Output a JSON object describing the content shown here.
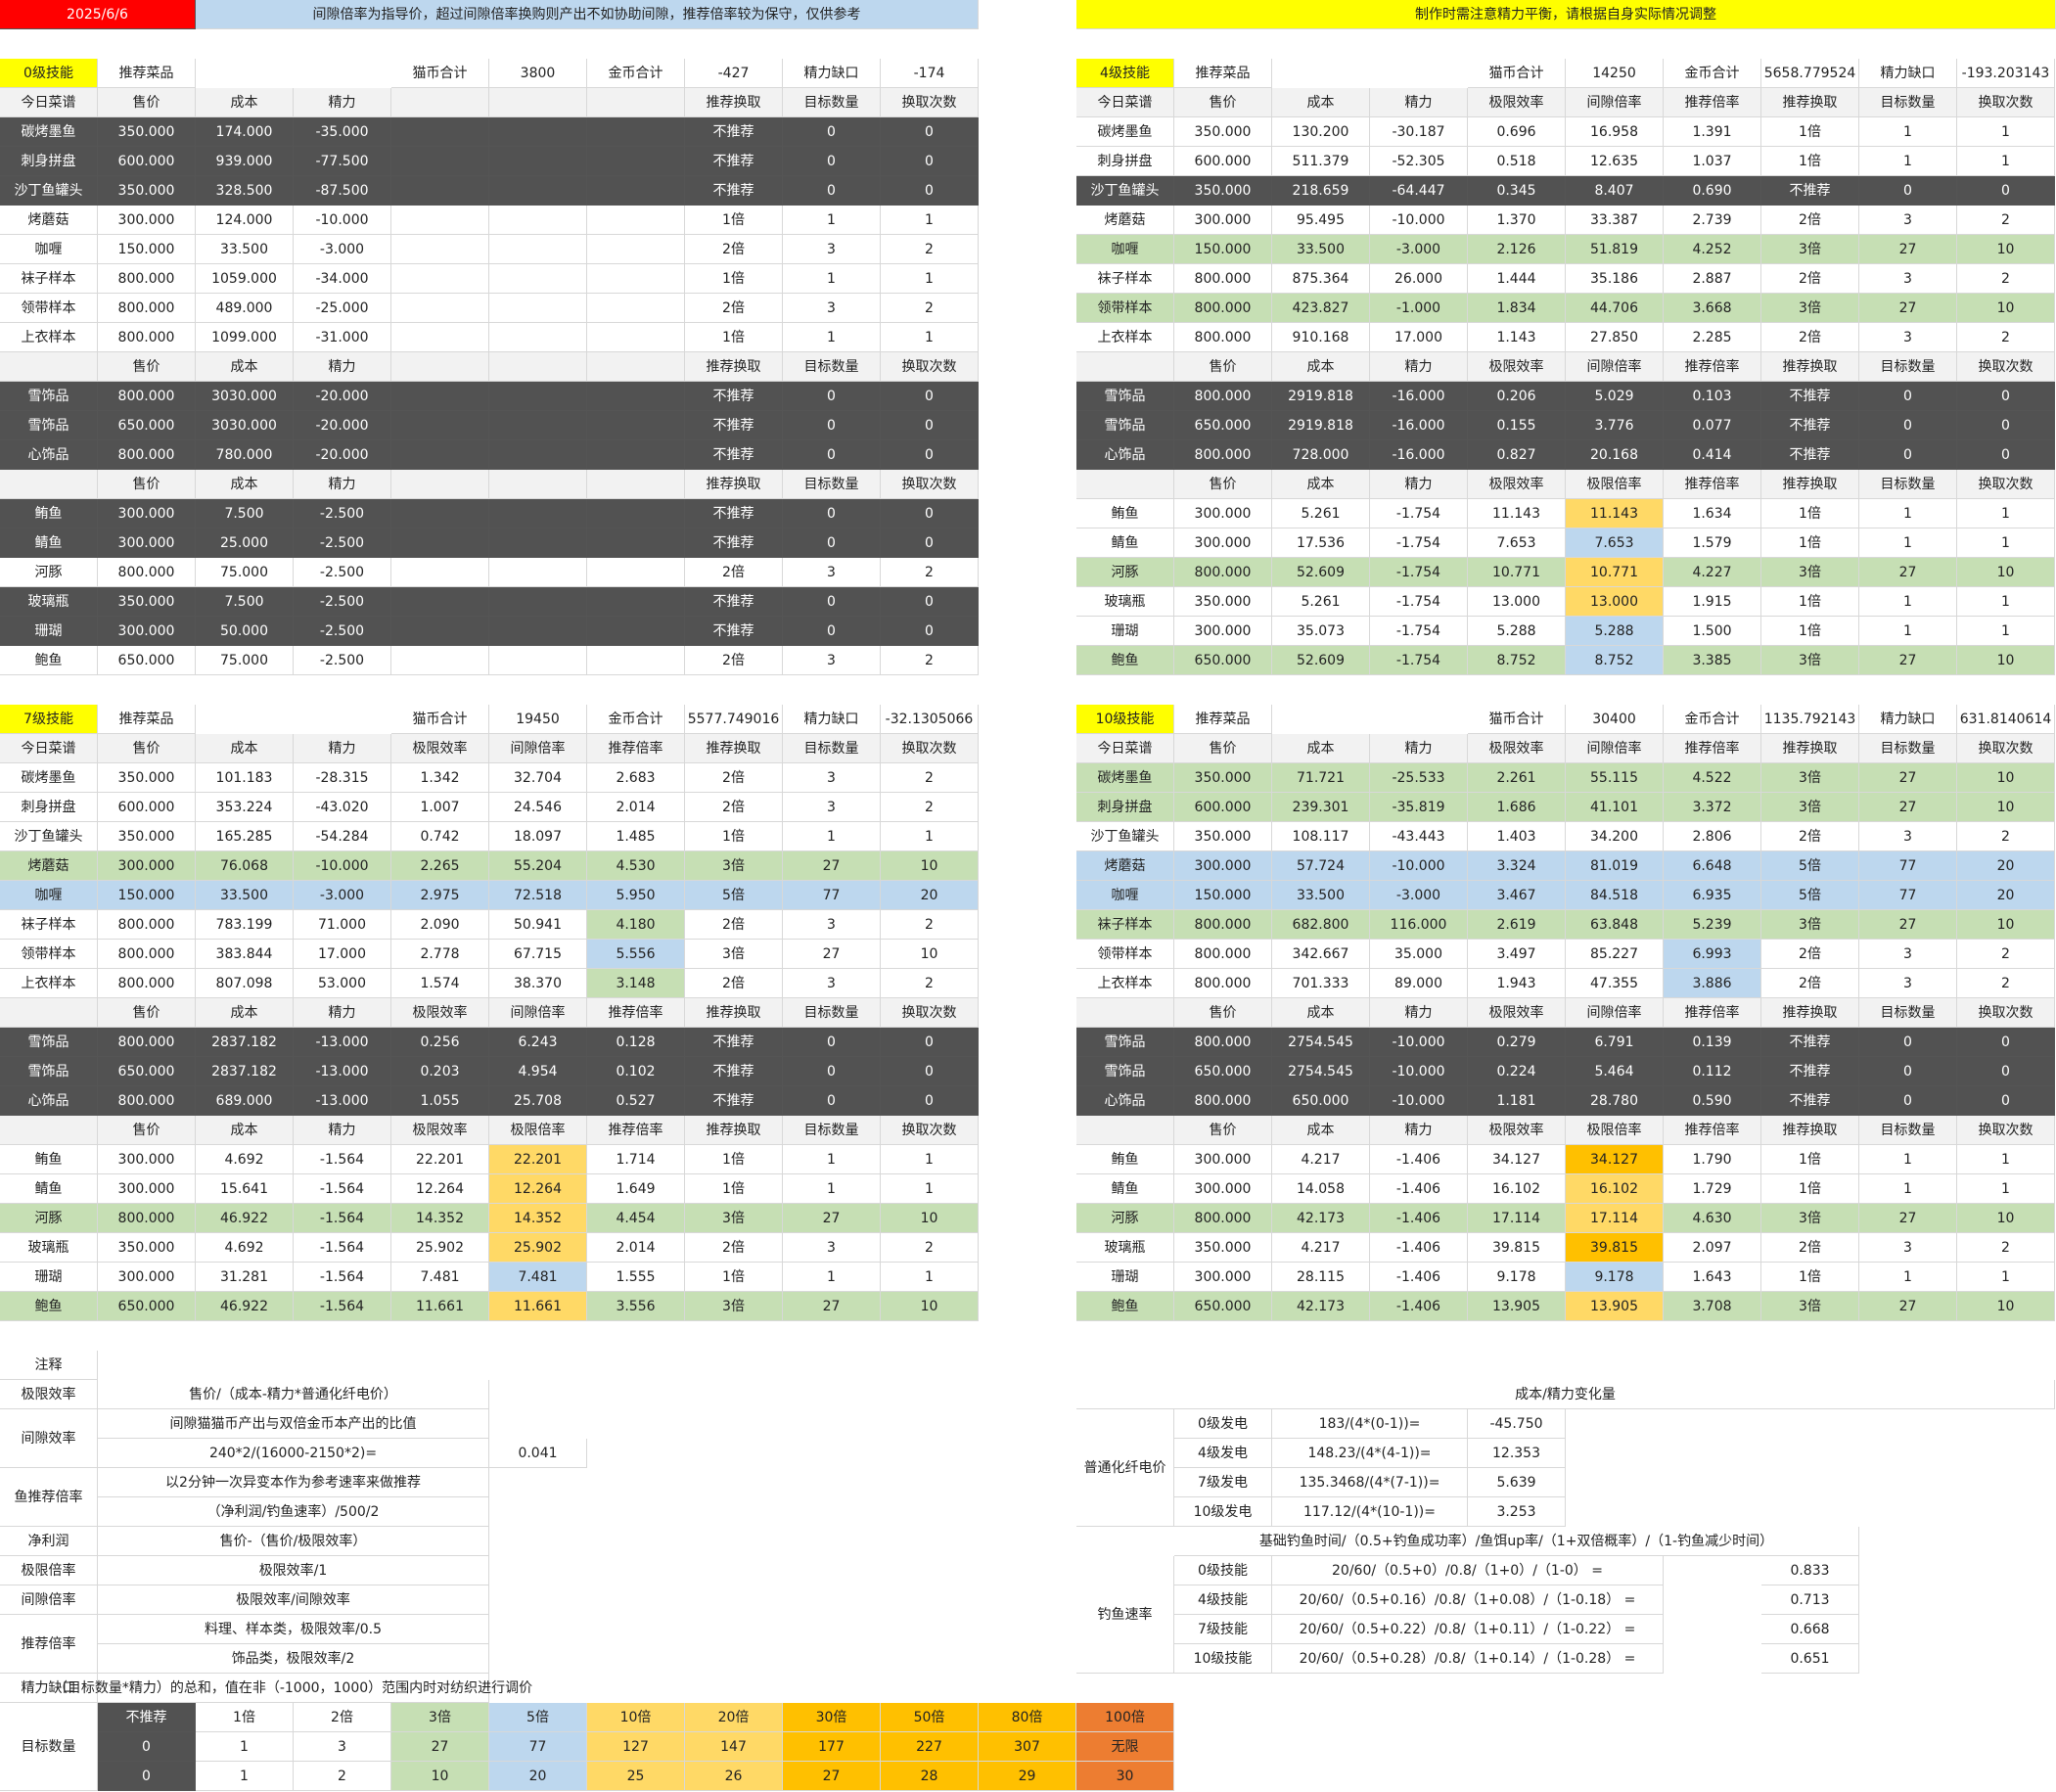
{
  "date": "2025/6/6",
  "banner_left": "间隙倍率为指导价，超过间隙倍率换购则产出不如协助间隙，推荐倍率较为保守，仅供参考",
  "banner_right": "制作时需注意精力平衡，请根据自身实际情况调整",
  "colors": {
    "dark": "#525252",
    "green": "#c6dfb4",
    "blue": "#bdd7ee",
    "yellow": "#ffd966",
    "orange": "#ffc000",
    "red": "#ff0000",
    "yellowbar": "#ffff00",
    "darkorange": "#ed7d31",
    "hdr": "#f2f2f2"
  },
  "labels": {
    "recommend": "推荐菜品",
    "today": "今日菜谱",
    "price": "售价",
    "cost": "成本",
    "energy": "精力",
    "limit_eff": "极限效率",
    "gap_rate": "间隙倍率",
    "limit_rate": "极限倍率",
    "rec_rate": "推荐倍率",
    "rec_exchange": "推荐换取",
    "target": "目标数量",
    "times": "换取次数",
    "cat_total": "猫币合计",
    "gold_total": "金币合计",
    "energy_gap": "精力缺口"
  },
  "panels": [
    {
      "id": "lv0",
      "tag": "0级技能",
      "cat": "3800",
      "gold": "-427",
      "gap": "-174",
      "full": false,
      "s1": [
        [
          "碳烤墨鱼",
          "350.000",
          "174.000",
          "-35.000",
          "不推荐",
          "0",
          "0",
          "D"
        ],
        [
          "刺身拼盘",
          "600.000",
          "939.000",
          "-77.500",
          "不推荐",
          "0",
          "0",
          "D"
        ],
        [
          "沙丁鱼罐头",
          "350.000",
          "328.500",
          "-87.500",
          "不推荐",
          "0",
          "0",
          "D"
        ],
        [
          "烤蘑菇",
          "300.000",
          "124.000",
          "-10.000",
          "1倍",
          "1",
          "1",
          ""
        ],
        [
          "咖喱",
          "150.000",
          "33.500",
          "-3.000",
          "2倍",
          "3",
          "2",
          ""
        ],
        [
          "袜子样本",
          "800.000",
          "1059.000",
          "-34.000",
          "1倍",
          "1",
          "1",
          ""
        ],
        [
          "领带样本",
          "800.000",
          "489.000",
          "-25.000",
          "2倍",
          "3",
          "2",
          ""
        ],
        [
          "上衣样本",
          "800.000",
          "1099.000",
          "-31.000",
          "1倍",
          "1",
          "1",
          ""
        ]
      ],
      "s2": [
        [
          "雪饰品",
          "800.000",
          "3030.000",
          "-20.000",
          "不推荐",
          "0",
          "0",
          "D"
        ],
        [
          "雪饰品",
          "650.000",
          "3030.000",
          "-20.000",
          "不推荐",
          "0",
          "0",
          "D"
        ],
        [
          "心饰品",
          "800.000",
          "780.000",
          "-20.000",
          "不推荐",
          "0",
          "0",
          "D"
        ]
      ],
      "s3": [
        [
          "鲔鱼",
          "300.000",
          "7.500",
          "-2.500",
          "不推荐",
          "0",
          "0",
          "D"
        ],
        [
          "鲭鱼",
          "300.000",
          "25.000",
          "-2.500",
          "不推荐",
          "0",
          "0",
          "D"
        ],
        [
          "河豚",
          "800.000",
          "75.000",
          "-2.500",
          "2倍",
          "3",
          "2",
          ""
        ],
        [
          "玻璃瓶",
          "350.000",
          "7.500",
          "-2.500",
          "不推荐",
          "0",
          "0",
          "D"
        ],
        [
          "珊瑚",
          "300.000",
          "50.000",
          "-2.500",
          "不推荐",
          "0",
          "0",
          "D"
        ],
        [
          "鲍鱼",
          "650.000",
          "75.000",
          "-2.500",
          "2倍",
          "3",
          "2",
          ""
        ]
      ]
    },
    {
      "id": "lv4",
      "tag": "4级技能",
      "cat": "14250",
      "gold": "5658.779524",
      "gap": "-193.203143",
      "full": true,
      "s1": [
        [
          "碳烤墨鱼",
          "350.000",
          "130.200",
          "-30.187",
          "0.696",
          "16.958",
          "1.391",
          "1倍",
          "1",
          "1",
          ""
        ],
        [
          "刺身拼盘",
          "600.000",
          "511.379",
          "-52.305",
          "0.518",
          "12.635",
          "1.037",
          "1倍",
          "1",
          "1",
          ""
        ],
        [
          "沙丁鱼罐头",
          "350.000",
          "218.659",
          "-64.447",
          "0.345",
          "8.407",
          "0.690",
          "不推荐",
          "0",
          "0",
          "D"
        ],
        [
          "烤蘑菇",
          "300.000",
          "95.495",
          "-10.000",
          "1.370",
          "33.387",
          "2.739",
          "2倍",
          "3",
          "2",
          ""
        ],
        [
          "咖喱",
          "150.000",
          "33.500",
          "-3.000",
          "2.126",
          "51.819",
          "4.252",
          "3倍",
          "27",
          "10",
          "G"
        ],
        [
          "袜子样本",
          "800.000",
          "875.364",
          "26.000",
          "1.444",
          "35.186",
          "2.887",
          "2倍",
          "3",
          "2",
          ""
        ],
        [
          "领带样本",
          "800.000",
          "423.827",
          "-1.000",
          "1.834",
          "44.706",
          "3.668",
          "3倍",
          "27",
          "10",
          "G"
        ],
        [
          "上衣样本",
          "800.000",
          "910.168",
          "17.000",
          "1.143",
          "27.850",
          "2.285",
          "2倍",
          "3",
          "2",
          ""
        ]
      ],
      "s2": [
        [
          "雪饰品",
          "800.000",
          "2919.818",
          "-16.000",
          "0.206",
          "5.029",
          "0.103",
          "不推荐",
          "0",
          "0",
          "D"
        ],
        [
          "雪饰品",
          "650.000",
          "2919.818",
          "-16.000",
          "0.155",
          "3.776",
          "0.077",
          "不推荐",
          "0",
          "0",
          "D"
        ],
        [
          "心饰品",
          "800.000",
          "728.000",
          "-16.000",
          "0.827",
          "20.168",
          "0.414",
          "不推荐",
          "0",
          "0",
          "D"
        ]
      ],
      "s3": [
        [
          "鲔鱼",
          "300.000",
          "5.261",
          "-1.754",
          "11.143",
          "11.143",
          "1.634",
          "1倍",
          "1",
          "1",
          "",
          "Y"
        ],
        [
          "鲭鱼",
          "300.000",
          "17.536",
          "-1.754",
          "7.653",
          "7.653",
          "1.579",
          "1倍",
          "1",
          "1",
          "",
          "B"
        ],
        [
          "河豚",
          "800.000",
          "52.609",
          "-1.754",
          "10.771",
          "10.771",
          "4.227",
          "3倍",
          "27",
          "10",
          "G",
          "Y"
        ],
        [
          "玻璃瓶",
          "350.000",
          "5.261",
          "-1.754",
          "13.000",
          "13.000",
          "1.915",
          "1倍",
          "1",
          "1",
          "",
          "Y"
        ],
        [
          "珊瑚",
          "300.000",
          "35.073",
          "-1.754",
          "5.288",
          "5.288",
          "1.500",
          "1倍",
          "1",
          "1",
          "",
          "B"
        ],
        [
          "鲍鱼",
          "650.000",
          "52.609",
          "-1.754",
          "8.752",
          "8.752",
          "3.385",
          "3倍",
          "27",
          "10",
          "G",
          "B"
        ]
      ]
    },
    {
      "id": "lv7",
      "tag": "7级技能",
      "cat": "19450",
      "gold": "5577.749016",
      "gap": "-32.1305066",
      "full": true,
      "s1": [
        [
          "碳烤墨鱼",
          "350.000",
          "101.183",
          "-28.315",
          "1.342",
          "32.704",
          "2.683",
          "2倍",
          "3",
          "2",
          ""
        ],
        [
          "刺身拼盘",
          "600.000",
          "353.224",
          "-43.020",
          "1.007",
          "24.546",
          "2.014",
          "2倍",
          "3",
          "2",
          ""
        ],
        [
          "沙丁鱼罐头",
          "350.000",
          "165.285",
          "-54.284",
          "0.742",
          "18.097",
          "1.485",
          "1倍",
          "1",
          "1",
          ""
        ],
        [
          "烤蘑菇",
          "300.000",
          "76.068",
          "-10.000",
          "2.265",
          "55.204",
          "4.530",
          "3倍",
          "27",
          "10",
          "G"
        ],
        [
          "咖喱",
          "150.000",
          "33.500",
          "-3.000",
          "2.975",
          "72.518",
          "5.950",
          "5倍",
          "77",
          "20",
          "B"
        ],
        [
          "袜子样本",
          "800.000",
          "783.199",
          "71.000",
          "2.090",
          "50.941",
          "4.180",
          "2倍",
          "3",
          "2",
          "",
          "G"
        ],
        [
          "领带样本",
          "800.000",
          "383.844",
          "17.000",
          "2.778",
          "67.715",
          "5.556",
          "3倍",
          "27",
          "10",
          "",
          "B"
        ],
        [
          "上衣样本",
          "800.000",
          "807.098",
          "53.000",
          "1.574",
          "38.370",
          "3.148",
          "2倍",
          "3",
          "2",
          "",
          "G"
        ]
      ],
      "s2": [
        [
          "雪饰品",
          "800.000",
          "2837.182",
          "-13.000",
          "0.256",
          "6.243",
          "0.128",
          "不推荐",
          "0",
          "0",
          "D"
        ],
        [
          "雪饰品",
          "650.000",
          "2837.182",
          "-13.000",
          "0.203",
          "4.954",
          "0.102",
          "不推荐",
          "0",
          "0",
          "D"
        ],
        [
          "心饰品",
          "800.000",
          "689.000",
          "-13.000",
          "1.055",
          "25.708",
          "0.527",
          "不推荐",
          "0",
          "0",
          "D"
        ]
      ],
      "s3": [
        [
          "鲔鱼",
          "300.000",
          "4.692",
          "-1.564",
          "22.201",
          "22.201",
          "1.714",
          "1倍",
          "1",
          "1",
          "",
          "Y"
        ],
        [
          "鲭鱼",
          "300.000",
          "15.641",
          "-1.564",
          "12.264",
          "12.264",
          "1.649",
          "1倍",
          "1",
          "1",
          "",
          "Y"
        ],
        [
          "河豚",
          "800.000",
          "46.922",
          "-1.564",
          "14.352",
          "14.352",
          "4.454",
          "3倍",
          "27",
          "10",
          "G",
          "Y"
        ],
        [
          "玻璃瓶",
          "350.000",
          "4.692",
          "-1.564",
          "25.902",
          "25.902",
          "2.014",
          "2倍",
          "3",
          "2",
          "",
          "Y"
        ],
        [
          "珊瑚",
          "300.000",
          "31.281",
          "-1.564",
          "7.481",
          "7.481",
          "1.555",
          "1倍",
          "1",
          "1",
          "",
          "B"
        ],
        [
          "鲍鱼",
          "650.000",
          "46.922",
          "-1.564",
          "11.661",
          "11.661",
          "3.556",
          "3倍",
          "27",
          "10",
          "G",
          "Y"
        ]
      ]
    },
    {
      "id": "lv10",
      "tag": "10级技能",
      "cat": "30400",
      "gold": "1135.792143",
      "gap": "631.8140614",
      "full": true,
      "s1": [
        [
          "碳烤墨鱼",
          "350.000",
          "71.721",
          "-25.533",
          "2.261",
          "55.115",
          "4.522",
          "3倍",
          "27",
          "10",
          "G"
        ],
        [
          "刺身拼盘",
          "600.000",
          "239.301",
          "-35.819",
          "1.686",
          "41.101",
          "3.372",
          "3倍",
          "27",
          "10",
          "G"
        ],
        [
          "沙丁鱼罐头",
          "350.000",
          "108.117",
          "-43.443",
          "1.403",
          "34.200",
          "2.806",
          "2倍",
          "3",
          "2",
          ""
        ],
        [
          "烤蘑菇",
          "300.000",
          "57.724",
          "-10.000",
          "3.324",
          "81.019",
          "6.648",
          "5倍",
          "77",
          "20",
          "B"
        ],
        [
          "咖喱",
          "150.000",
          "33.500",
          "-3.000",
          "3.467",
          "84.518",
          "6.935",
          "5倍",
          "77",
          "20",
          "B"
        ],
        [
          "袜子样本",
          "800.000",
          "682.800",
          "116.000",
          "2.619",
          "63.848",
          "5.239",
          "3倍",
          "27",
          "10",
          "G"
        ],
        [
          "领带样本",
          "800.000",
          "342.667",
          "35.000",
          "3.497",
          "85.227",
          "6.993",
          "2倍",
          "3",
          "2",
          "",
          "B"
        ],
        [
          "上衣样本",
          "800.000",
          "701.333",
          "89.000",
          "1.943",
          "47.355",
          "3.886",
          "2倍",
          "3",
          "2",
          "",
          "B"
        ]
      ],
      "s2": [
        [
          "雪饰品",
          "800.000",
          "2754.545",
          "-10.000",
          "0.279",
          "6.791",
          "0.139",
          "不推荐",
          "0",
          "0",
          "D"
        ],
        [
          "雪饰品",
          "650.000",
          "2754.545",
          "-10.000",
          "0.224",
          "5.464",
          "0.112",
          "不推荐",
          "0",
          "0",
          "D"
        ],
        [
          "心饰品",
          "800.000",
          "650.000",
          "-10.000",
          "1.181",
          "28.780",
          "0.590",
          "不推荐",
          "0",
          "0",
          "D"
        ]
      ],
      "s3": [
        [
          "鲔鱼",
          "300.000",
          "4.217",
          "-1.406",
          "34.127",
          "34.127",
          "1.790",
          "1倍",
          "1",
          "1",
          "",
          "O"
        ],
        [
          "鲭鱼",
          "300.000",
          "14.058",
          "-1.406",
          "16.102",
          "16.102",
          "1.729",
          "1倍",
          "1",
          "1",
          "",
          "Y"
        ],
        [
          "河豚",
          "800.000",
          "42.173",
          "-1.406",
          "17.114",
          "17.114",
          "4.630",
          "3倍",
          "27",
          "10",
          "G",
          "Y"
        ],
        [
          "玻璃瓶",
          "350.000",
          "4.217",
          "-1.406",
          "39.815",
          "39.815",
          "2.097",
          "2倍",
          "3",
          "2",
          "",
          "O"
        ],
        [
          "珊瑚",
          "300.000",
          "28.115",
          "-1.406",
          "9.178",
          "9.178",
          "1.643",
          "1倍",
          "1",
          "1",
          "",
          "B"
        ],
        [
          "鲍鱼",
          "650.000",
          "42.173",
          "-1.406",
          "13.905",
          "13.905",
          "3.708",
          "3倍",
          "27",
          "10",
          "G",
          "Y"
        ]
      ]
    }
  ],
  "notes": {
    "title": "注释",
    "left": [
      [
        "极限效率",
        "售价/（成本-精力*普通化纤电价）"
      ],
      [
        "间隙效率",
        "间隙猫猫币产出与双倍金币本产出的比值",
        "240*2/(16000-2150*2)=",
        "0.041"
      ],
      [
        "鱼推荐倍率",
        "以2分钟一次异变本作为参考速率来做推荐",
        "（净利润/钓鱼速率）/500/2"
      ],
      [
        "净利润",
        "售价-（售价/极限效率）"
      ],
      [
        "极限倍率",
        "极限效率/1"
      ],
      [
        "间隙倍率",
        "极限效率/间隙效率"
      ],
      [
        "推荐倍率",
        "料理、样本类，极限效率/0.5",
        "饰品类，极限效率/2"
      ],
      [
        "精力缺口",
        "（目标数量*精力）的总和，值在非（-1000，1000）范围内时对纺织进行调价"
      ]
    ],
    "right_title": "成本/精力变化量",
    "electric_label": "普通化纤电价",
    "electric": [
      [
        "0级发电",
        "183/(4*(0-1))=",
        "-45.750"
      ],
      [
        "4级发电",
        "148.23/(4*(4-1))=",
        "12.353"
      ],
      [
        "7级发电",
        "135.3468/(4*(7-1))=",
        "5.639"
      ],
      [
        "10级发电",
        "117.12/(4*(10-1))=",
        "3.253"
      ]
    ],
    "fish_formula": "基础钓鱼时间/（0.5+钓鱼成功率）/鱼饵up率/（1+双倍概率）/（1-钓鱼减少时间）",
    "fish_label": "钓鱼速率",
    "fish": [
      [
        "0级技能",
        "20/60/（0.5+0）/0.8/（1+0）/（1-0）  =",
        "0.833"
      ],
      [
        "4级技能",
        "20/60/（0.5+0.16）/0.8/（1+0.08）/（1-0.18）  =",
        "0.713"
      ],
      [
        "7级技能",
        "20/60/（0.5+0.22）/0.8/（1+0.11）/（1-0.22）  =",
        "0.668"
      ],
      [
        "10级技能",
        "20/60/（0.5+0.28）/0.8/（1+0.14）/（1-0.28）  =",
        "0.651"
      ]
    ]
  },
  "legend": {
    "label": "目标数量",
    "head": [
      "不推荐",
      "1倍",
      "2倍",
      "3倍",
      "5倍",
      "10倍",
      "20倍",
      "30倍",
      "50倍",
      "80倍",
      "100倍"
    ],
    "row1": [
      "0",
      "1",
      "3",
      "27",
      "77",
      "127",
      "147",
      "177",
      "227",
      "307",
      "无限"
    ],
    "row2": [
      "0",
      "1",
      "2",
      "10",
      "20",
      "25",
      "26",
      "27",
      "28",
      "29",
      "30"
    ]
  }
}
